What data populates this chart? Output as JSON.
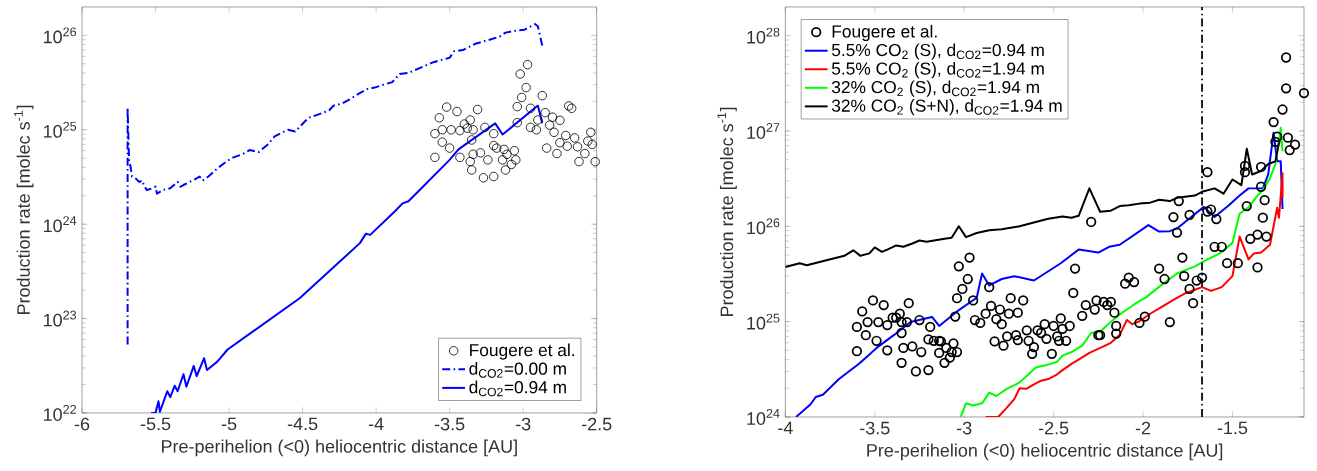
{
  "chart_data": [
    {
      "type": "line",
      "xlabel": "Pre-perihelion (<0) heliocentric distance [AU]",
      "ylabel": "Production rate [molec s$^{-1}$]",
      "xlim": [
        -6,
        -2.5
      ],
      "ylim": [
        1e+22,
        2e+26
      ],
      "log": "y",
      "legend": "bottom right",
      "xticks": [
        -6,
        -5.5,
        -5,
        -4.5,
        -4,
        -3.5,
        -3,
        -2.5
      ],
      "yticks": [
        {
          "value": 1e+22,
          "label": "10$^{22}$"
        },
        {
          "value": 1e+23,
          "label": "10$^{23}$"
        },
        {
          "value": 1e+24,
          "label": "10$^{24}$"
        },
        {
          "value": 1e+25,
          "label": "10$^{25}$"
        },
        {
          "value": 1e+26,
          "label": "10$^{26}$"
        }
      ],
      "series": [
        {
          "name": "Fougere et al.",
          "type": "scatter",
          "marker": "circle",
          "color": "#000000",
          "x": [
            -3.6,
            -3.6,
            -3.57,
            -3.55,
            -3.55,
            -3.52,
            -3.5,
            -3.49,
            -3.45,
            -3.43,
            -3.43,
            -3.4,
            -3.38,
            -3.36,
            -3.36,
            -3.35,
            -3.35,
            -3.34,
            -3.34,
            -3.31,
            -3.29,
            -3.27,
            -3.26,
            -3.24,
            -3.2,
            -3.2,
            -3.2,
            -3.18,
            -3.14,
            -3.13,
            -3.12,
            -3.11,
            -3.08,
            -3.06,
            -3.05,
            -3.04,
            -3.04,
            -3.02,
            -3.01,
            -2.98,
            -2.97,
            -2.95,
            -2.95,
            -2.91,
            -2.9,
            -2.87,
            -2.85,
            -2.84,
            -2.82,
            -2.8,
            -2.79,
            -2.77,
            -2.75,
            -2.75,
            -2.71,
            -2.7,
            -2.69,
            -2.67,
            -2.65,
            -2.63,
            -2.62,
            -2.58,
            -2.56,
            -2.54,
            -2.53,
            -2.51
          ],
          "values": [
            5.1e+24,
            9.1e+24,
            1.34e+25,
            7.4e+24,
            1e+25,
            1.74e+25,
            6.4e+24,
            1e+25,
            1.56e+25,
            9.8e+24,
            5.1e+24,
            1.15e+25,
            1.04e+25,
            1.27e+25,
            4.6e+24,
            7.8e+24,
            3.75e+24,
            1e+25,
            5.5e+24,
            1.64e+25,
            5.7e+24,
            3.1e+24,
            1.06e+25,
            4.8e+24,
            9.1e+24,
            3.2e+24,
            6.8e+24,
            6.4e+24,
            4.8e+24,
            6.2e+24,
            3.75e+24,
            5.5e+24,
            4.3e+24,
            6e+24,
            4.8e+24,
            1.19e+25,
            1.76e+25,
            3.9e+25,
            2.2e+25,
            2.8e+25,
            4.9e+25,
            1.06e+25,
            1.69e+25,
            1e+25,
            1.27e+25,
            2.3e+25,
            1.52e+25,
            6.4e+24,
            1.12e+25,
            1.36e+25,
            9.4e+24,
            5.6e+24,
            7.3e+24,
            1.26e+25,
            8.7e+24,
            6.7e+24,
            1.79e+25,
            1.69e+25,
            8.2e+24,
            6.6e+24,
            4.6e+24,
            5.6e+24,
            7.6e+24,
            9.4e+24,
            7e+24,
            4.6e+24
          ]
        },
        {
          "name": "d$_{CO2}$=0.00 m",
          "line_style": "dashdot",
          "color": "#0000ff",
          "x": [
            -5.69,
            -5.69,
            -5.68,
            -5.67,
            -5.66,
            -5.64,
            -5.61,
            -5.59,
            -5.58,
            -5.56,
            -5.52,
            -5.5,
            -5.49,
            -5.45,
            -5.4,
            -5.35,
            -5.33,
            -5.31,
            -5.27,
            -5.23,
            -5.2,
            -5.18,
            -5.14,
            -5.08,
            -5.01,
            -4.97,
            -4.91,
            -4.86,
            -4.8,
            -4.74,
            -4.69,
            -4.6,
            -4.55,
            -4.46,
            -4.4,
            -4.32,
            -4.29,
            -4.23,
            -4.18,
            -4.12,
            -4.06,
            -4.01,
            -3.95,
            -3.89,
            -3.84,
            -3.78,
            -3.72,
            -3.61,
            -3.5,
            -3.47,
            -3.41,
            -3.33,
            -3.24,
            -3.16,
            -3.12,
            -3.04,
            -2.99,
            -2.92,
            -2.9,
            -2.87
          ],
          "values": [
            5.3e+22,
            1.7e+25,
            4.6e+24,
            4.1e+24,
            3.2e+24,
            3.1e+24,
            2.8e+24,
            2.9e+24,
            2.6e+24,
            2.3e+24,
            2.4e+24,
            2.5e+24,
            2.1e+24,
            2.3e+24,
            2.4e+24,
            2.8e+24,
            2.5e+24,
            2.6e+24,
            2.8e+24,
            3e+24,
            3.2e+24,
            2.9e+24,
            3.2e+24,
            3.9e+24,
            4.7e+24,
            5.1e+24,
            5.5e+24,
            6.1e+24,
            5.8e+24,
            6.9e+24,
            8.5e+24,
            1e+25,
            9.6e+24,
            1.34e+25,
            1.44e+25,
            1.6e+25,
            1.8e+25,
            1.9e+25,
            2.1e+25,
            2.4e+25,
            2.7e+25,
            2.8e+25,
            3e+25,
            3.2e+25,
            3.9e+25,
            4e+25,
            4.4e+25,
            5.2e+25,
            5.8e+25,
            6.8e+25,
            7e+25,
            8.1e+25,
            8.9e+25,
            9.7e+25,
            1.07e+26,
            1.13e+26,
            1.15e+26,
            1.32e+26,
            1.25e+26,
            7.8e+25
          ]
        },
        {
          "name": "d$_{CO2}$=0.94 m",
          "line_style": "solid",
          "color": "#0000ff",
          "x": [
            -5.53,
            -5.5,
            -5.48,
            -5.47,
            -5.42,
            -5.4,
            -5.37,
            -5.35,
            -5.31,
            -5.29,
            -5.24,
            -5.22,
            -5.17,
            -5.15,
            -5.08,
            -5.01,
            -4.52,
            -4.11,
            -4.07,
            -4.04,
            -3.87,
            -3.82,
            -3.78,
            -3.5,
            -3.44,
            -3.19,
            -3.14,
            -2.9,
            -2.87
          ],
          "values": [
            1e+22,
            1e+22,
            1.33e+22,
            1.03e+22,
            1.7e+22,
            1.47e+22,
            1.94e+22,
            1.7e+22,
            2.57e+22,
            1.9e+22,
            3.15e+22,
            2.45e+22,
            3.8e+22,
            2.85e+22,
            3.5e+22,
            4.7e+22,
            1.64e+23,
            6.3e+23,
            7.9e+23,
            7.7e+23,
            1.38e+24,
            1.66e+24,
            1.75e+24,
            4.8e+24,
            6.2e+24,
            1.17e+25,
            8.9e+24,
            1.81e+25,
            1.17e+25
          ]
        }
      ]
    },
    {
      "type": "line",
      "xlabel": "Pre-perihelion (<0) heliocentric distance [AU]",
      "ylabel": "Production rate [molec s$^{-1}$]",
      "xlim": [
        -4,
        -1.1
      ],
      "ylim": [
        1e+24,
        2e+28
      ],
      "log": "y",
      "legend": "top left",
      "xticks": [
        -4,
        -3.5,
        -3,
        -2.5,
        -2,
        -1.5
      ],
      "yticks": [
        {
          "value": 1e+24,
          "label": "10$^{24}$"
        },
        {
          "value": 1e+25,
          "label": "10$^{25}$"
        },
        {
          "value": 1e+26,
          "label": "10$^{26}$"
        },
        {
          "value": 1e+27,
          "label": "10$^{27}$"
        },
        {
          "value": 1e+28,
          "label": "10$^{28}$"
        }
      ],
      "ref_lines": [
        {
          "axis": "x",
          "value": -1.67,
          "color": "#000000",
          "line_style": "dashdot"
        }
      ],
      "series": [
        {
          "name": "Fougere et al.",
          "type": "scatter",
          "marker": "circle",
          "color": "#000000",
          "x": [
            -3.6,
            -3.6,
            -3.57,
            -3.55,
            -3.54,
            -3.51,
            -3.49,
            -3.48,
            -3.45,
            -3.43,
            -3.43,
            -3.4,
            -3.38,
            -3.36,
            -3.35,
            -3.35,
            -3.35,
            -3.34,
            -3.32,
            -3.31,
            -3.29,
            -3.27,
            -3.25,
            -3.24,
            -3.2,
            -3.2,
            -3.19,
            -3.17,
            -3.14,
            -3.14,
            -3.13,
            -3.11,
            -3.1,
            -3.08,
            -3.07,
            -3.06,
            -3.05,
            -3.04,
            -3.04,
            -3.03,
            -3.01,
            -2.98,
            -2.97,
            -2.95,
            -2.94,
            -2.91,
            -2.88,
            -2.86,
            -2.85,
            -2.83,
            -2.82,
            -2.8,
            -2.79,
            -2.78,
            -2.76,
            -2.75,
            -2.74,
            -2.71,
            -2.7,
            -2.7,
            -2.67,
            -2.65,
            -2.64,
            -2.62,
            -2.61,
            -2.59,
            -2.57,
            -2.55,
            -2.54,
            -2.51,
            -2.5,
            -2.48,
            -2.47,
            -2.46,
            -2.45,
            -2.43,
            -2.41,
            -2.39,
            -2.38,
            -2.34,
            -2.32,
            -2.29,
            -2.27,
            -2.26,
            -2.25,
            -2.24,
            -2.22,
            -2.2,
            -2.18,
            -2.16,
            -2.15,
            -2.15,
            -2.1,
            -2.08,
            -2.05,
            -2.02,
            -1.99,
            -1.91,
            -1.88,
            -1.85,
            -1.83,
            -1.81,
            -1.8,
            -1.78,
            -1.77,
            -1.74,
            -1.74,
            -1.72,
            -1.7,
            -1.67,
            -1.64,
            -1.64,
            -1.62,
            -1.6,
            -1.59,
            -1.56,
            -1.53,
            -1.47,
            -1.43,
            -1.43,
            -1.42,
            -1.4,
            -1.36,
            -1.36,
            -1.34,
            -1.34,
            -1.33,
            -1.32,
            -1.31,
            -1.27,
            -1.26,
            -1.25,
            -1.22,
            -1.2,
            -1.2,
            -1.19,
            -1.18,
            -1.15,
            -1.1
          ],
          "values": [
            4.9e+24,
            8.8e+24,
            1.28e+25,
            7.2e+24,
            9.9e+24,
            1.67e+25,
            6.3e+24,
            9.9e+24,
            1.49e+25,
            5e+24,
            9.2e+24,
            1.1e+25,
            1.1e+25,
            1.21e+25,
            9.9e+24,
            7.6e+24,
            3.7e+24,
            5.3e+24,
            9.9e+24,
            1.56e+25,
            5.5e+24,
            3e+24,
            1.04e+25,
            4.8e+24,
            3.1e+24,
            6.5e+24,
            8.8e+24,
            6.3e+24,
            6.3e+24,
            4.7e+24,
            6.2e+24,
            3.7e+24,
            5.3e+24,
            4.2e+24,
            4.8e+24,
            5.9e+24,
            1.13e+25,
            4.8e+24,
            1.76e+25,
            3.8e+25,
            2.2e+25,
            2.8e+25,
            4.7e+25,
            1.67e+25,
            1.04e+25,
            9.7e+24,
            1.21e+25,
            2.3e+25,
            1.46e+25,
            6.2e+24,
            1.06e+25,
            1.34e+25,
            9.4e+24,
            5.6e+24,
            7e+24,
            1.21e+25,
            1.76e+25,
            7.2e+24,
            1.24e+25,
            6.4e+24,
            1.67e+25,
            8.1e+24,
            6.3e+24,
            4.6e+24,
            5.4e+24,
            8.1e+24,
            7.6e+24,
            9.4e+24,
            6.6e+24,
            4.6e+24,
            9e+24,
            7e+24,
            6.3e+24,
            1.08e+25,
            8.4e+24,
            6.3e+24,
            9e+24,
            2e+25,
            3.6e+25,
            1.15e+25,
            1.49e+25,
            1.11e+26,
            1.34e+25,
            1.67e+25,
            7.2e+24,
            7.2e+24,
            1.61e+25,
            1.49e+25,
            1.61e+25,
            1.24e+25,
            9e+24,
            7.5e+24,
            2.5e+25,
            2.9e+25,
            2.6e+25,
            9.7e+24,
            1.13e+25,
            3.6e+25,
            2.8e+25,
            9.9e+24,
            1.25e+26,
            8.6e+25,
            1.84e+26,
            4.7e+25,
            3e+25,
            2.2e+25,
            1.32e+26,
            1.56e+25,
            2.7e+25,
            2.9e+25,
            3.7e+26,
            1.43e+26,
            1.5e+26,
            6.1e+25,
            1.19e+26,
            6.1e+25,
            4.1e+25,
            4.1e+25,
            4.3e+26,
            3.7e+26,
            1.63e+26,
            7.4e+25,
            8.2e+25,
            3.7e+25,
            4.2e+26,
            2.6e+26,
            1.23e+26,
            1.88e+26,
            7.8e+25,
            1.24e+27,
            7.7e+26,
            8.7e+26,
            1.68e+27,
            5.9e+27,
            2.8e+27,
            8.5e+26,
            6.3e+26,
            7.2e+26,
            2.5e+27
          ]
        },
        {
          "name": "5.5% CO$_{2}$ (S), d$_{CO2}$=0.94 m",
          "line_style": "solid",
          "color": "#0000ff",
          "x": [
            -3.94,
            -3.86,
            -3.83,
            -3.79,
            -3.7,
            -3.59,
            -3.52,
            -3.49,
            -3.39,
            -3.3,
            -3.18,
            -3.14,
            -3.04,
            -2.93,
            -2.9,
            -2.86,
            -2.79,
            -2.72,
            -2.61,
            -2.46,
            -2.36,
            -2.25,
            -2.19,
            -2.13,
            -1.97,
            -1.91,
            -1.85,
            -1.81,
            -1.66,
            -1.6,
            -1.52,
            -1.46,
            -1.41,
            -1.33,
            -1.3,
            -1.27,
            -1.25,
            -1.23,
            -1.22
          ],
          "values": [
            1e+24,
            1.35e+24,
            1.62e+24,
            1.71e+24,
            2.5e+24,
            3.6e+24,
            4.7e+24,
            5.3e+24,
            7.3e+24,
            9.9e+24,
            1.12e+25,
            9e+24,
            1.28e+25,
            1.78e+25,
            3.2e+25,
            2.4e+25,
            2.8e+25,
            3e+25,
            2.7e+25,
            4.1e+25,
            5.7e+25,
            5.3e+25,
            6.1e+25,
            6.4e+25,
            1.03e+26,
            8.8e+25,
            8.9e+25,
            9.5e+25,
            1.6e+26,
            1.25e+26,
            1.66e+26,
            2.1e+26,
            2.5e+26,
            2.5e+26,
            3.5e+26,
            9.6e+26,
            4.8e+26,
            4.8e+26,
            1.52e+26
          ]
        },
        {
          "name": "5.5% CO$_{2}$ (S), d$_{CO2}$=1.94 m",
          "line_style": "solid",
          "color": "#ff0000",
          "x": [
            -2.88,
            -2.81,
            -2.76,
            -2.72,
            -2.69,
            -2.65,
            -2.61,
            -2.57,
            -2.53,
            -2.48,
            -2.45,
            -2.4,
            -2.36,
            -2.3,
            -2.23,
            -2.18,
            -2.13,
            -2.09,
            -2.06,
            -2.02,
            -1.96,
            -1.9,
            -1.83,
            -1.76,
            -1.67,
            -1.62,
            -1.56,
            -1.5,
            -1.46,
            -1.41,
            -1.38,
            -1.34,
            -1.29,
            -1.25,
            -1.24,
            -1.22,
            -1.22
          ],
          "values": [
            1e+24,
            1e+24,
            1.26e+24,
            1.54e+24,
            2e+24,
            1.98e+24,
            2.2e+24,
            2.4e+24,
            2.5e+24,
            2.8e+24,
            3.1e+24,
            3.6e+24,
            4e+24,
            4.7e+24,
            5.4e+24,
            6e+24,
            7.3e+24,
            1.04e+25,
            9.4e+24,
            1.01e+25,
            1.21e+25,
            1.41e+25,
            1.69e+25,
            2e+25,
            2.3e+25,
            2.1e+25,
            2.3e+25,
            3e+25,
            7.8e+25,
            4.5e+25,
            5.2e+25,
            5.3e+25,
            6.4e+25,
            1.57e+26,
            1.23e+26,
            3.6e+26,
            2e+26
          ]
        },
        {
          "name": "32% CO$_{2}$ (S), d$_{CO2}$=1.94 m",
          "line_style": "solid",
          "color": "#00ff00",
          "x": [
            -3.02,
            -2.99,
            -2.95,
            -2.9,
            -2.86,
            -2.82,
            -2.76,
            -2.69,
            -2.6,
            -2.54,
            -2.48,
            -2.45,
            -2.4,
            -2.34,
            -2.29,
            -2.24,
            -2.18,
            -2.13,
            -2.09,
            -2.04,
            -1.98,
            -1.9,
            -1.81,
            -1.71,
            -1.64,
            -1.57,
            -1.5,
            -1.46,
            -1.41,
            -1.36,
            -1.33,
            -1.29,
            -1.26,
            -1.23,
            -1.22
          ],
          "values": [
            1e+24,
            1.39e+24,
            1.32e+24,
            1.39e+24,
            1.8e+24,
            1.66e+24,
            1.98e+24,
            2.3e+24,
            3.3e+24,
            3.5e+24,
            3.8e+24,
            4.4e+24,
            4.8e+24,
            5.6e+24,
            7.6e+24,
            7.9e+24,
            9.9e+24,
            1.19e+25,
            1.34e+25,
            1.56e+25,
            1.82e+25,
            2.4e+25,
            3.2e+25,
            3.8e+25,
            4.5e+25,
            5.2e+25,
            6.7e+25,
            1.36e+26,
            1.58e+26,
            2.1e+26,
            2.4e+26,
            3.2e+26,
            4.5e+26,
            1.08e+27,
            6.1e+26
          ]
        },
        {
          "name": "32% CO$_{2}$ (S+N), d$_{CO2}$=1.94 m",
          "line_style": "solid",
          "color": "#000000",
          "x": [
            -4.0,
            -3.92,
            -3.88,
            -3.77,
            -3.67,
            -3.62,
            -3.58,
            -3.53,
            -3.5,
            -3.46,
            -3.43,
            -3.38,
            -3.34,
            -3.29,
            -3.25,
            -3.21,
            -3.11,
            -3.07,
            -3.03,
            -2.99,
            -2.93,
            -2.86,
            -2.79,
            -2.69,
            -2.6,
            -2.53,
            -2.45,
            -2.4,
            -2.36,
            -2.3,
            -2.24,
            -2.18,
            -2.13,
            -2.08,
            -2.02,
            -1.96,
            -1.91,
            -1.85,
            -1.81,
            -1.71,
            -1.67,
            -1.6,
            -1.55,
            -1.5,
            -1.45,
            -1.42,
            -1.39,
            -1.34,
            -1.3,
            -1.26,
            -1.24
          ],
          "values": [
            3.75e+25,
            4.1e+25,
            3.9e+25,
            4.4e+25,
            4.9e+25,
            5.6e+25,
            4.9e+25,
            5.2e+25,
            6e+25,
            5.4e+25,
            5.7e+25,
            6.3e+25,
            6.1e+25,
            6.6e+25,
            7.1e+25,
            6.9e+25,
            7.4e+25,
            7.6e+25,
            1e+26,
            7.7e+25,
            8.5e+25,
            9.1e+25,
            9.3e+25,
            1e+26,
            1.11e+26,
            1.2e+26,
            1.27e+26,
            1.23e+26,
            1.29e+26,
            2.5e+26,
            1.42e+26,
            1.46e+26,
            1.63e+26,
            1.66e+26,
            1.73e+26,
            1.77e+26,
            1.9e+26,
            1.84e+26,
            1.99e+26,
            2.1e+26,
            2.3e+26,
            2.5e+26,
            2.2e+26,
            3.1e+26,
            2.7e+26,
            6.5e+26,
            3.5e+26,
            3.8e+26,
            4.5e+26,
            4.8e+26,
            7.5e+26
          ]
        }
      ]
    }
  ]
}
